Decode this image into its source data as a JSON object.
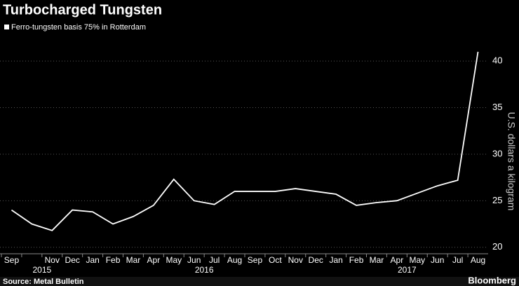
{
  "chart_data": {
    "type": "line",
    "title": "Turbocharged Tungsten",
    "series": [
      {
        "name": "Ferro-tungsten basis 75% in Rotterdam",
        "color": "#ffffff",
        "values": [
          24,
          22.5,
          21.8,
          24,
          23.8,
          22.5,
          23.3,
          24.5,
          27.3,
          25,
          24.6,
          26,
          26,
          26,
          26.3,
          26,
          25.7,
          24.5,
          24.8,
          25,
          25.8,
          26.6,
          27.2,
          41
        ]
      }
    ],
    "x": [
      "2015-09",
      "2015-10",
      "2015-11",
      "2015-12",
      "2016-01",
      "2016-02",
      "2016-03",
      "2016-04",
      "2016-05",
      "2016-06",
      "2016-07",
      "2016-08",
      "2016-09",
      "2016-10",
      "2016-11",
      "2016-12",
      "2017-01",
      "2017-02",
      "2017-03",
      "2017-04",
      "2017-05",
      "2017-06",
      "2017-07",
      "2017-08"
    ],
    "categories": [
      "Sep",
      null,
      "Nov",
      "Dec",
      "Jan",
      "Feb",
      "Mar",
      "Apr",
      "May",
      "Jun",
      "Jul",
      "Aug",
      "Sep",
      "Oct",
      "Nov",
      "Dec",
      "Jan",
      "Feb",
      "Mar",
      "Apr",
      "May",
      "Jun",
      "Jul",
      "Aug"
    ],
    "years": [
      "2015",
      "2016",
      "2017"
    ],
    "ylabel": "U.S. dollars a kilogram",
    "ylim": [
      19.3,
      42.8
    ],
    "yticks": [
      20,
      25,
      30,
      35,
      40
    ],
    "grid": true,
    "source": "Source: Metal Bulletin",
    "brand": "Bloomberg"
  }
}
